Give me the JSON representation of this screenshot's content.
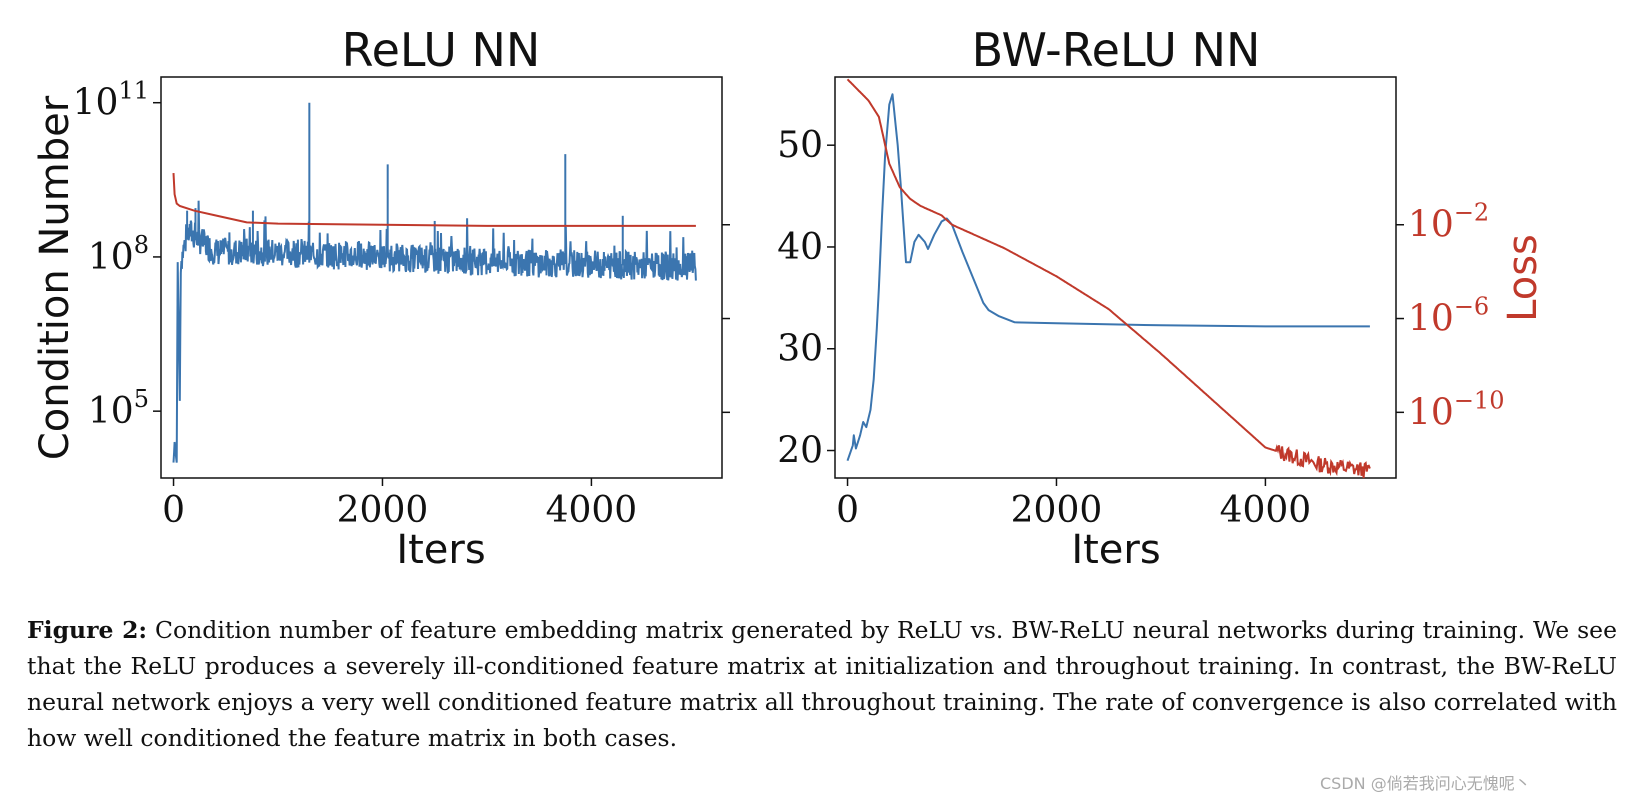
{
  "colors": {
    "blue": "#3b75af",
    "red": "#c0392b"
  },
  "chart_data": [
    {
      "type": "line",
      "title": "ReLU NN",
      "xlabel": "Iters",
      "ylabel": "Condition Number",
      "yscale": "log",
      "xlim": [
        -120,
        5250
      ],
      "ylim_exp": [
        3.7,
        11.5
      ],
      "xticks": [
        0,
        2000,
        4000
      ],
      "yticks": [
        {
          "base": "10",
          "exp": "5",
          "value": 5
        },
        {
          "base": "10",
          "exp": "8",
          "value": 8
        },
        {
          "base": "10",
          "exp": "11",
          "value": 11
        }
      ],
      "secondary_axis_ticks_unlabeled": [
        -2,
        -6,
        -10
      ],
      "series": [
        {
          "color": "blue",
          "description": "condition number (log10)",
          "points": [
            [
              0,
              4.0
            ],
            [
              10,
              4.4
            ],
            [
              30,
              4.0
            ],
            [
              40,
              7.9
            ],
            [
              60,
              5.2
            ],
            [
              70,
              7.9
            ],
            [
              80,
              8.0
            ],
            [
              100,
              8.2
            ],
            [
              150,
              8.5
            ],
            [
              200,
              8.4
            ],
            [
              400,
              8.1
            ],
            [
              800,
              8.1
            ],
            [
              1300,
              8.05
            ],
            [
              2000,
              8.0
            ],
            [
              3000,
              7.9
            ],
            [
              4000,
              7.85
            ],
            [
              5000,
              7.8
            ]
          ],
          "spikes": [
            [
              130,
              8.9
            ],
            [
              210,
              8.95
            ],
            [
              760,
              8.9
            ],
            [
              1300,
              11.0
            ],
            [
              2050,
              9.8
            ],
            [
              2500,
              8.7
            ],
            [
              3750,
              10.0
            ],
            [
              4300,
              8.8
            ]
          ]
        },
        {
          "color": "red",
          "description": "loss (log10, right axis)",
          "points": [
            [
              0,
              0.2
            ],
            [
              10,
              -0.7
            ],
            [
              30,
              -1.1
            ],
            [
              60,
              -1.2
            ],
            [
              200,
              -1.4
            ],
            [
              400,
              -1.6
            ],
            [
              700,
              -1.9
            ],
            [
              1000,
              -1.95
            ],
            [
              2000,
              -2.0
            ],
            [
              3000,
              -2.05
            ],
            [
              4000,
              -2.05
            ],
            [
              5000,
              -2.05
            ]
          ]
        }
      ]
    },
    {
      "type": "line",
      "title": "BW-ReLU NN",
      "xlabel": "Iters",
      "ylabel": "",
      "y2label": "Loss",
      "xlim": [
        -120,
        5250
      ],
      "ylim": [
        17.3,
        56.7
      ],
      "y2scale": "log",
      "y2lim_exp": [
        -12.8,
        4.3
      ],
      "xticks": [
        0,
        2000,
        4000
      ],
      "yticks": [
        20,
        30,
        40,
        50
      ],
      "y2ticks": [
        {
          "base": "10",
          "exp": "−2",
          "value": -2
        },
        {
          "base": "10",
          "exp": "−6",
          "value": -6
        },
        {
          "base": "10",
          "exp": "−10",
          "value": -10
        }
      ],
      "series": [
        {
          "color": "blue",
          "description": "condition number",
          "points": [
            [
              0,
              19
            ],
            [
              50,
              20.5
            ],
            [
              60,
              21.5
            ],
            [
              80,
              20.2
            ],
            [
              120,
              21.5
            ],
            [
              150,
              22.8
            ],
            [
              180,
              22.3
            ],
            [
              220,
              24
            ],
            [
              250,
              27
            ],
            [
              280,
              32
            ],
            [
              300,
              36
            ],
            [
              330,
              43
            ],
            [
              360,
              49
            ],
            [
              400,
              54
            ],
            [
              430,
              55
            ],
            [
              460,
              52
            ],
            [
              480,
              50
            ],
            [
              510,
              46
            ],
            [
              560,
              38.5
            ],
            [
              600,
              38.5
            ],
            [
              640,
              40.5
            ],
            [
              680,
              41.2
            ],
            [
              740,
              40.5
            ],
            [
              770,
              39.8
            ],
            [
              830,
              41.2
            ],
            [
              900,
              42.5
            ],
            [
              950,
              42.8
            ],
            [
              1000,
              42.2
            ],
            [
              1100,
              39.5
            ],
            [
              1200,
              37
            ],
            [
              1300,
              34.5
            ],
            [
              1350,
              33.8
            ],
            [
              1450,
              33.2
            ],
            [
              1600,
              32.6
            ],
            [
              2000,
              32.5
            ],
            [
              3000,
              32.3
            ],
            [
              4000,
              32.2
            ],
            [
              5000,
              32.2
            ]
          ]
        },
        {
          "color": "red",
          "description": "loss (log10)",
          "points": [
            [
              0,
              4.2
            ],
            [
              200,
              3.3
            ],
            [
              300,
              2.6
            ],
            [
              400,
              0.6
            ],
            [
              500,
              -0.4
            ],
            [
              600,
              -0.9
            ],
            [
              700,
              -1.2
            ],
            [
              900,
              -1.6
            ],
            [
              1000,
              -2.0
            ],
            [
              1500,
              -3.0
            ],
            [
              2000,
              -4.2
            ],
            [
              2500,
              -5.6
            ],
            [
              3000,
              -7.5
            ],
            [
              3500,
              -9.5
            ],
            [
              4000,
              -11.5
            ],
            [
              4500,
              -12.2
            ],
            [
              5000,
              -12.5
            ]
          ]
        }
      ]
    }
  ],
  "caption": {
    "label": "Figure 2:",
    "text": "Condition number of feature embedding matrix generated by ReLU vs. BW-ReLU neural networks during training. We see that the ReLU produces a severely ill-conditioned feature matrix at initialization and throughout training. In contrast, the BW-ReLU neural network enjoys a very well conditioned feature matrix all throughout training. The rate of convergence is also correlated with how well conditioned the feature matrix in both cases."
  },
  "watermark": "CSDN @倘若我问心无愧呢丶"
}
